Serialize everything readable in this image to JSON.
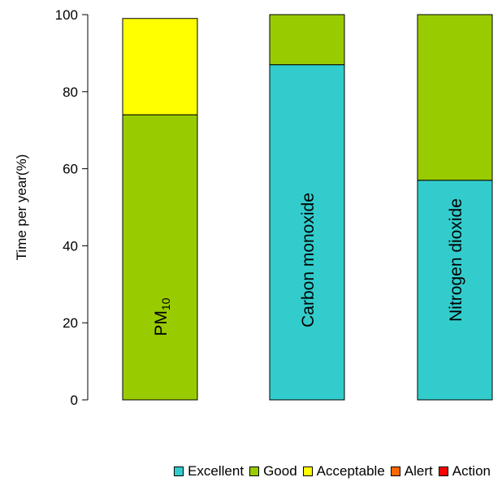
{
  "chart_data": {
    "type": "bar",
    "stacked": true,
    "ylabel": "Time per year(%)",
    "ylim": [
      0,
      100
    ],
    "yticks": [
      "0",
      "20",
      "40",
      "60",
      "80",
      "100"
    ],
    "grid": false,
    "legend_position": "bottom-right",
    "categories": [
      "PM10",
      "Carbon monoxide",
      "Nitrogen dioxide"
    ],
    "series": [
      {
        "name": "Excellent",
        "color": "#33cccc",
        "values": [
          0,
          87,
          57
        ]
      },
      {
        "name": "Good",
        "color": "#99cc00",
        "values": [
          74,
          13,
          43
        ]
      },
      {
        "name": "Acceptable",
        "color": "#ffff00",
        "values": [
          25,
          0,
          0
        ]
      },
      {
        "name": "Alert",
        "color": "#ff6600",
        "values": [
          0,
          0,
          0
        ]
      },
      {
        "name": "Action",
        "color": "#ff0000",
        "values": [
          0,
          0,
          0
        ]
      }
    ],
    "bar_labels": [
      {
        "main": "PM",
        "sub": "10"
      },
      {
        "main": "Carbon monoxide",
        "sub": ""
      },
      {
        "main": "Nitrogen dioxide",
        "sub": ""
      }
    ]
  }
}
